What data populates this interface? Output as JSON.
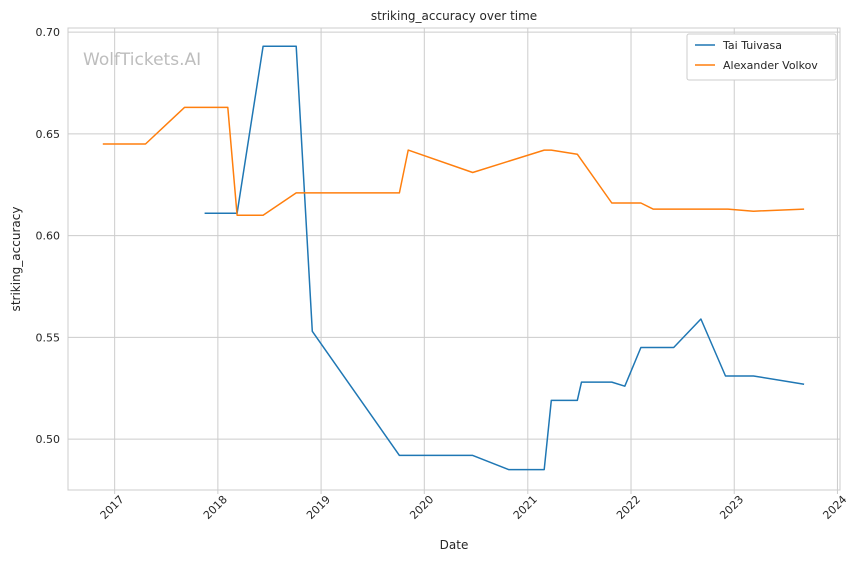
{
  "chart_data": {
    "type": "line",
    "title": "striking_accuracy over time",
    "xlabel": "Date",
    "ylabel": "striking_accuracy",
    "watermark": "WolfTickets.AI",
    "xlim": [
      "2016-07-20",
      "2024-01-10"
    ],
    "ylim": [
      0.475,
      0.702
    ],
    "x_ticks": [
      "2017-01-01",
      "2018-01-01",
      "2019-01-01",
      "2020-01-01",
      "2021-01-01",
      "2022-01-01",
      "2023-01-01",
      "2024-01-01"
    ],
    "x_tick_labels": [
      "2017",
      "2018",
      "2019",
      "2020",
      "2021",
      "2022",
      "2023",
      "2024"
    ],
    "y_ticks": [
      0.5,
      0.55,
      0.6,
      0.65,
      0.7
    ],
    "y_tick_labels": [
      "0.50",
      "0.55",
      "0.60",
      "0.65",
      "0.70"
    ],
    "grid": true,
    "legend_position": "top-right",
    "series": [
      {
        "name": "Tai Tuivasa",
        "color": "#1f77b4",
        "points": [
          [
            "2017-11-15",
            0.611
          ],
          [
            "2018-03-10",
            0.611
          ],
          [
            "2018-06-10",
            0.693
          ],
          [
            "2018-10-05",
            0.693
          ],
          [
            "2018-12-01",
            0.553
          ],
          [
            "2019-10-05",
            0.492
          ],
          [
            "2020-06-20",
            0.492
          ],
          [
            "2020-10-25",
            0.485
          ],
          [
            "2021-02-28",
            0.485
          ],
          [
            "2021-03-25",
            0.519
          ],
          [
            "2021-06-25",
            0.519
          ],
          [
            "2021-07-10",
            0.528
          ],
          [
            "2021-10-25",
            0.528
          ],
          [
            "2021-12-10",
            0.526
          ],
          [
            "2022-02-05",
            0.545
          ],
          [
            "2022-06-01",
            0.545
          ],
          [
            "2022-09-05",
            0.559
          ],
          [
            "2022-12-01",
            0.531
          ],
          [
            "2023-03-10",
            0.531
          ],
          [
            "2023-09-05",
            0.527
          ]
        ]
      },
      {
        "name": "Alexander Volkov",
        "color": "#ff7f0e",
        "points": [
          [
            "2016-11-20",
            0.645
          ],
          [
            "2017-04-20",
            0.645
          ],
          [
            "2017-09-05",
            0.663
          ],
          [
            "2018-02-05",
            0.663
          ],
          [
            "2018-03-10",
            0.61
          ],
          [
            "2018-06-10",
            0.61
          ],
          [
            "2018-10-05",
            0.621
          ],
          [
            "2019-10-05",
            0.621
          ],
          [
            "2019-11-05",
            0.642
          ],
          [
            "2020-06-20",
            0.631
          ],
          [
            "2021-02-28",
            0.642
          ],
          [
            "2021-03-25",
            0.642
          ],
          [
            "2021-06-25",
            0.64
          ],
          [
            "2021-10-25",
            0.616
          ],
          [
            "2022-02-05",
            0.616
          ],
          [
            "2022-03-20",
            0.613
          ],
          [
            "2022-06-01",
            0.613
          ],
          [
            "2022-12-10",
            0.613
          ],
          [
            "2023-03-10",
            0.612
          ],
          [
            "2023-09-05",
            0.613
          ]
        ]
      }
    ]
  }
}
